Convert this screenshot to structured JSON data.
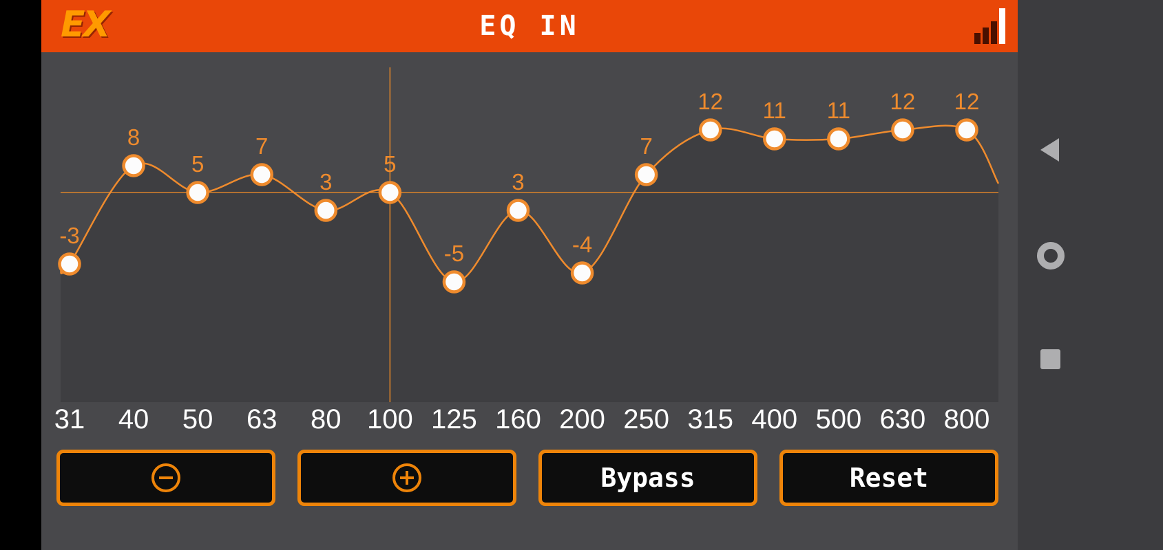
{
  "header": {
    "logo": "EX",
    "title": "EQ IN",
    "signal_icon": "signal-strength-icon"
  },
  "chart_data": {
    "type": "line",
    "title": "EQ IN",
    "categories": [
      "31",
      "40",
      "50",
      "63",
      "80",
      "100",
      "125",
      "160",
      "200",
      "250",
      "315",
      "400",
      "500",
      "630",
      "800"
    ],
    "values": [
      -3,
      8,
      5,
      7,
      3,
      5,
      -5,
      3,
      -4,
      7,
      12,
      11,
      11,
      12,
      12
    ],
    "selected_index": 5,
    "selected_category": "100",
    "selected_value": 5,
    "xlabel": "",
    "ylabel": "",
    "ylim": [
      -18,
      20
    ],
    "grid": false,
    "legend": false,
    "line_color": "#ef8b2d",
    "point_fill": "#fcfcfc",
    "point_stroke": "#ef8b2d",
    "value_label_color": "#ef8b2d",
    "tick_label_color": "#ffffff",
    "area_fill": "#3e3e41",
    "crosshair_color": "#d9822a"
  },
  "buttons": {
    "decrease_icon": "minus-circle-icon",
    "increase_icon": "plus-circle-icon",
    "bypass_label": "Bypass",
    "reset_label": "Reset"
  },
  "android_nav": {
    "back_icon": "back-icon",
    "home_icon": "home-icon",
    "recents_icon": "recents-icon"
  },
  "colors": {
    "header_bg": "#e94708",
    "accent_orange": "#ee8409",
    "background": "#48484b",
    "button_bg": "#0d0d0d",
    "nav_bar_bg": "#3c3c3f",
    "logo_orange": "#ff9a00"
  }
}
